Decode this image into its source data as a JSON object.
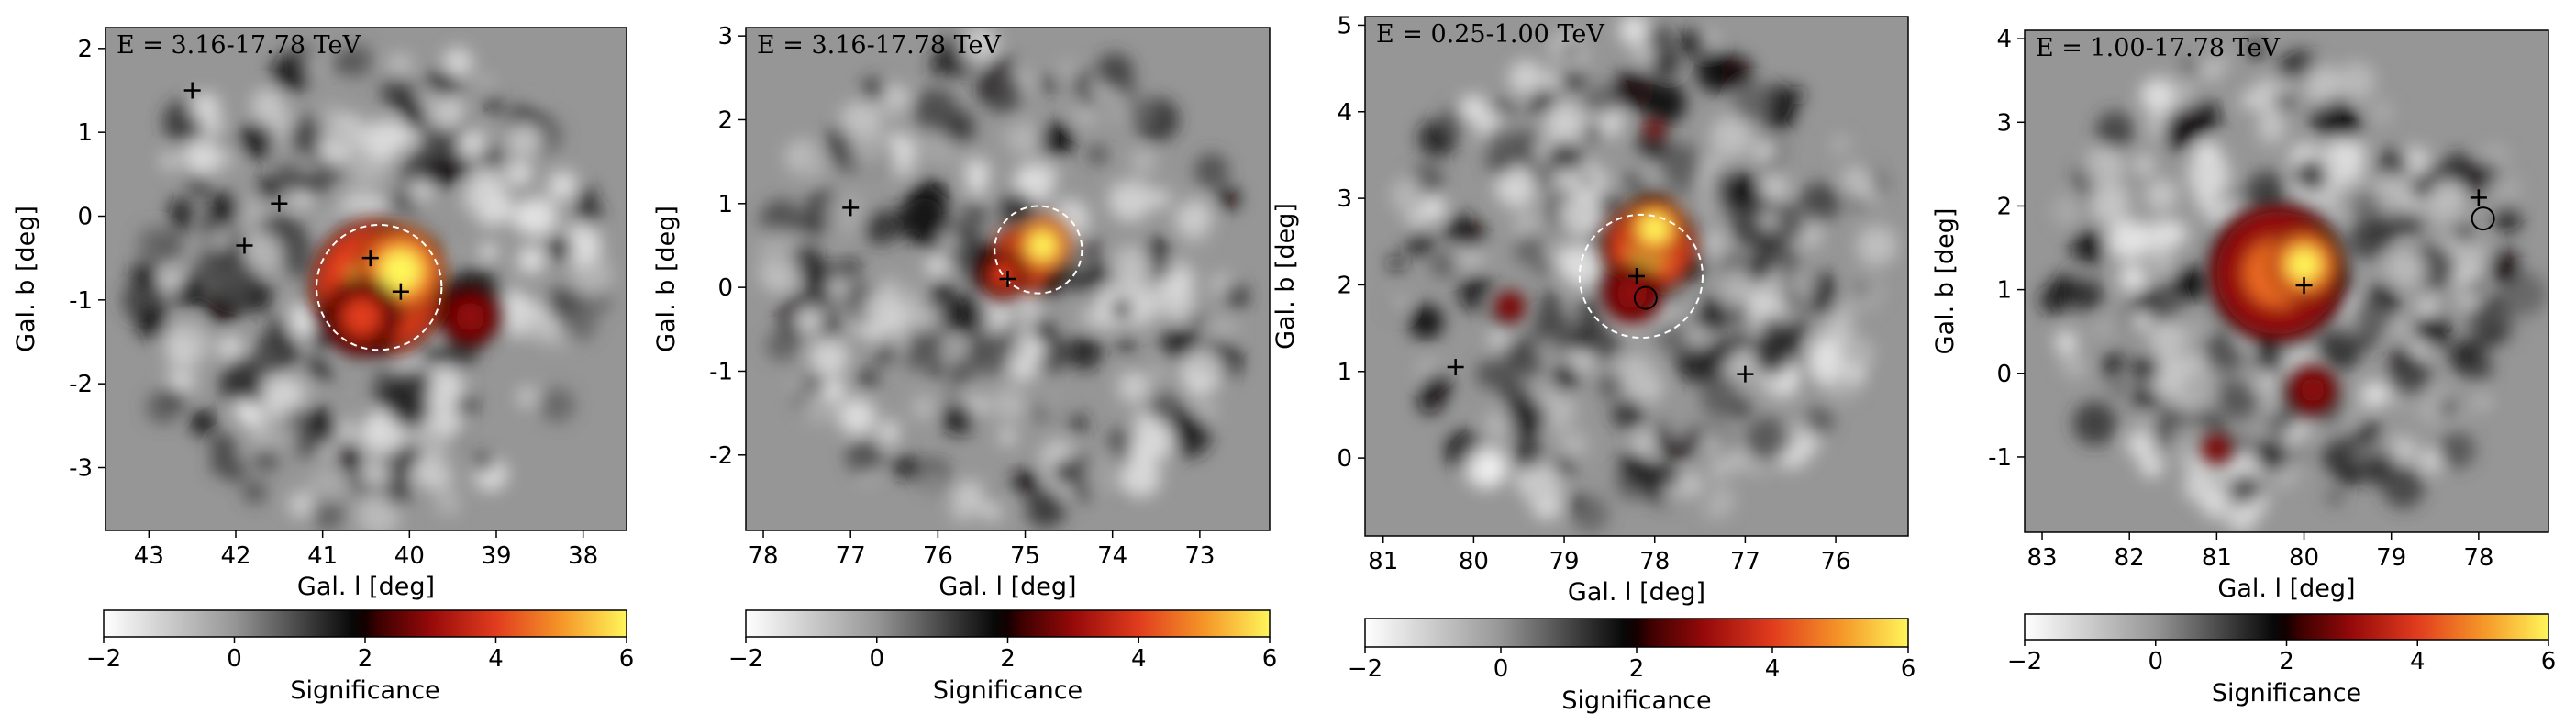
{
  "chart_data": [
    {
      "type": "heatmap",
      "energy_label": "E = 3.16-17.78 TeV",
      "xlabel": "Gal. l [deg]",
      "ylabel": "Gal. b [deg]",
      "xlim": [
        43.5,
        37.5
      ],
      "ylim": [
        -3.75,
        2.25
      ],
      "xticks": [
        43,
        42,
        41,
        40,
        39,
        38
      ],
      "yticks": [
        -3,
        -2,
        -1,
        0,
        1,
        2
      ],
      "hotspots": [
        {
          "l": 40.35,
          "b": -0.85,
          "r": 0.7,
          "value": 5.5
        },
        {
          "l": 40.1,
          "b": -0.65,
          "r": 0.45,
          "value": 6.0
        },
        {
          "l": 40.55,
          "b": -1.2,
          "r": 0.4,
          "value": 4.0
        },
        {
          "l": 39.3,
          "b": -1.2,
          "r": 0.3,
          "value": 3.0
        }
      ],
      "markers_plus": [
        {
          "l": 42.5,
          "b": 1.5
        },
        {
          "l": 41.5,
          "b": 0.15
        },
        {
          "l": 41.9,
          "b": -0.35
        },
        {
          "l": 40.45,
          "b": -0.5
        },
        {
          "l": 40.1,
          "b": -0.9
        }
      ],
      "markers_circle": [],
      "dashed_circles": [
        {
          "l": 40.35,
          "b": -0.85,
          "r": 0.72
        }
      ],
      "colorbar": {
        "label": "Significance",
        "ticks": [
          -2,
          0,
          2,
          4,
          6
        ],
        "range": [
          -2,
          6
        ]
      }
    },
    {
      "type": "heatmap",
      "energy_label": "E = 3.16-17.78 TeV",
      "xlabel": "Gal. l [deg]",
      "ylabel": "Gal. b [deg]",
      "xlim": [
        78.2,
        72.2
      ],
      "ylim": [
        -2.9,
        3.1
      ],
      "xticks": [
        78,
        77,
        76,
        75,
        74,
        73
      ],
      "yticks": [
        -2,
        -1,
        0,
        1,
        2,
        3
      ],
      "hotspots": [
        {
          "l": 75.0,
          "b": 0.35,
          "r": 0.35,
          "value": 5.5
        },
        {
          "l": 74.8,
          "b": 0.5,
          "r": 0.3,
          "value": 6.0
        },
        {
          "l": 75.25,
          "b": 0.15,
          "r": 0.25,
          "value": 4.0
        }
      ],
      "markers_plus": [
        {
          "l": 77.0,
          "b": 0.95
        },
        {
          "l": 75.2,
          "b": 0.1
        }
      ],
      "markers_circle": [],
      "dashed_circles": [
        {
          "l": 74.85,
          "b": 0.45,
          "r": 0.5
        }
      ],
      "colorbar": {
        "label": "Significance",
        "ticks": [
          -2,
          0,
          2,
          4,
          6
        ],
        "range": [
          -2,
          6
        ]
      }
    },
    {
      "type": "heatmap",
      "energy_label": "E = 0.25-1.00 TeV",
      "xlabel": "Gal. l [deg]",
      "ylabel": "Gal. b [deg]",
      "xlim": [
        81.2,
        75.2
      ],
      "ylim": [
        -0.9,
        5.1
      ],
      "xticks": [
        81,
        80,
        79,
        78,
        77,
        76
      ],
      "yticks": [
        0,
        1,
        2,
        3,
        4,
        5
      ],
      "hotspots": [
        {
          "l": 78.05,
          "b": 2.45,
          "r": 0.45,
          "value": 5.5
        },
        {
          "l": 78.0,
          "b": 2.65,
          "r": 0.3,
          "value": 6.0
        },
        {
          "l": 78.25,
          "b": 1.9,
          "r": 0.3,
          "value": 3.0
        },
        {
          "l": 79.6,
          "b": 1.75,
          "r": 0.15,
          "value": 3.0
        },
        {
          "l": 78.0,
          "b": 3.8,
          "r": 0.1,
          "value": 3.0
        }
      ],
      "markers_plus": [
        {
          "l": 80.2,
          "b": 1.05
        },
        {
          "l": 78.2,
          "b": 2.1
        },
        {
          "l": 77.0,
          "b": 0.97
        }
      ],
      "markers_circle": [
        {
          "l": 78.1,
          "b": 1.85
        }
      ],
      "dashed_circles": [
        {
          "l": 78.15,
          "b": 2.1,
          "r": 0.68
        }
      ],
      "colorbar": {
        "label": "Significance",
        "ticks": [
          -2,
          0,
          2,
          4,
          6
        ],
        "range": [
          -2,
          6
        ]
      }
    },
    {
      "type": "heatmap",
      "energy_label": "E = 1.00-17.78 TeV",
      "xlabel": "Gal. l [deg]",
      "ylabel": "Gal. b [deg]",
      "xlim": [
        83.2,
        77.2
      ],
      "ylim": [
        -1.9,
        4.1
      ],
      "xticks": [
        83,
        82,
        81,
        80,
        79,
        78
      ],
      "yticks": [
        -1,
        0,
        1,
        2,
        3,
        4
      ],
      "hotspots": [
        {
          "l": 80.3,
          "b": 1.2,
          "r": 0.7,
          "value": 4.5
        },
        {
          "l": 80.0,
          "b": 1.3,
          "r": 0.35,
          "value": 6.0
        },
        {
          "l": 79.9,
          "b": -0.2,
          "r": 0.25,
          "value": 3.0
        },
        {
          "l": 81.0,
          "b": -0.9,
          "r": 0.15,
          "value": 3.0
        }
      ],
      "markers_plus": [
        {
          "l": 80.0,
          "b": 1.05
        },
        {
          "l": 78.0,
          "b": 2.1
        }
      ],
      "markers_circle": [
        {
          "l": 77.95,
          "b": 1.85
        }
      ],
      "dashed_circles": [],
      "colorbar": {
        "label": "Significance",
        "ticks": [
          -2,
          0,
          2,
          4,
          6
        ],
        "range": [
          -2,
          6
        ]
      }
    }
  ]
}
